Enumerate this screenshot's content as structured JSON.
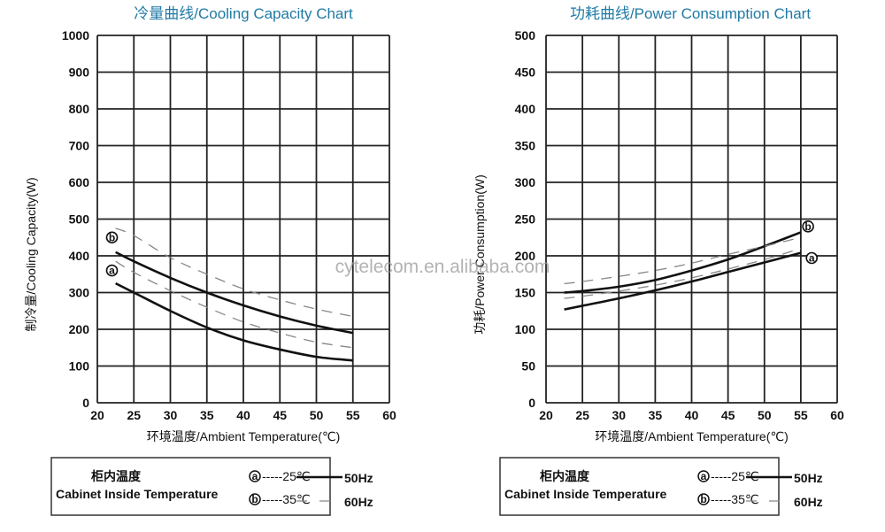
{
  "chart_data": [
    {
      "type": "line",
      "title": "冷量曲线/Cooling Capacity Chart",
      "xlabel": "环境温度/Ambient Temperature(℃)",
      "ylabel": "制冷量/Cooling  Capacity(W)",
      "xlim": [
        20,
        60
      ],
      "ylim": [
        0,
        1000
      ],
      "xticks": [
        20,
        25,
        30,
        35,
        40,
        45,
        50,
        55,
        60
      ],
      "yticks": [
        0,
        100,
        200,
        300,
        400,
        500,
        600,
        700,
        800,
        900,
        1000
      ],
      "grid": true,
      "x": [
        22.5,
        25,
        30,
        35,
        40,
        45,
        50,
        55
      ],
      "series": [
        {
          "name": "b 35℃ 50Hz",
          "style": "solid",
          "values": [
            410,
            385,
            340,
            300,
            265,
            235,
            210,
            190
          ]
        },
        {
          "name": "b 35℃ 60Hz",
          "style": "dashed",
          "values": [
            475,
            455,
            395,
            350,
            310,
            280,
            255,
            235
          ]
        },
        {
          "name": "a 25℃ 50Hz",
          "style": "solid",
          "values": [
            325,
            300,
            250,
            205,
            170,
            145,
            125,
            115
          ]
        },
        {
          "name": "a 25℃ 60Hz",
          "style": "dashed",
          "values": [
            385,
            355,
            305,
            260,
            220,
            190,
            165,
            150
          ]
        }
      ],
      "annotations": [
        {
          "label": "ⓑ",
          "x": 22,
          "y": 450
        },
        {
          "label": "ⓐ",
          "x": 22,
          "y": 360
        }
      ]
    },
    {
      "type": "line",
      "title": "功耗曲线/Power Consumption Chart",
      "xlabel": "环境温度/Ambient Temperature(℃)",
      "ylabel": "功耗/Power Consumption(W)",
      "xlim": [
        20,
        60
      ],
      "ylim": [
        0,
        500
      ],
      "xticks": [
        20,
        25,
        30,
        35,
        40,
        45,
        50,
        55,
        60
      ],
      "yticks": [
        0,
        50,
        100,
        150,
        200,
        250,
        300,
        350,
        400,
        450,
        500
      ],
      "grid": true,
      "x": [
        22.5,
        25,
        30,
        35,
        40,
        45,
        50,
        55
      ],
      "series": [
        {
          "name": "b 35℃ 50Hz",
          "style": "solid",
          "values": [
            150,
            152,
            158,
            167,
            180,
            195,
            213,
            232
          ]
        },
        {
          "name": "b 35℃ 60Hz",
          "style": "dashed",
          "values": [
            162,
            165,
            172,
            180,
            190,
            202,
            213,
            225
          ]
        },
        {
          "name": "a 25℃ 50Hz",
          "style": "solid",
          "values": [
            127,
            132,
            142,
            153,
            165,
            178,
            191,
            204
          ]
        },
        {
          "name": "a 25℃ 60Hz",
          "style": "dashed",
          "values": [
            142,
            145,
            152,
            160,
            170,
            182,
            195,
            210
          ]
        }
      ],
      "annotations": [
        {
          "label": "ⓑ",
          "x": 56,
          "y": 240
        },
        {
          "label": "ⓐ",
          "x": 56.5,
          "y": 197
        }
      ]
    }
  ],
  "legend": {
    "cabinet_cn": "柜内温度",
    "cabinet_en": "Cabinet Inside Temperature",
    "a_marker": "ⓐ",
    "a_text": "-----25℃",
    "b_marker": "ⓑ",
    "b_text": "-----35℃",
    "solid_label": "50Hz",
    "dashed_label": "60Hz"
  },
  "watermark": "cytelecom.en.alibaba.com",
  "colors": {
    "title": "#1f7aa6",
    "grid": "#222222",
    "line": "#111111",
    "dashed": "#888888"
  }
}
